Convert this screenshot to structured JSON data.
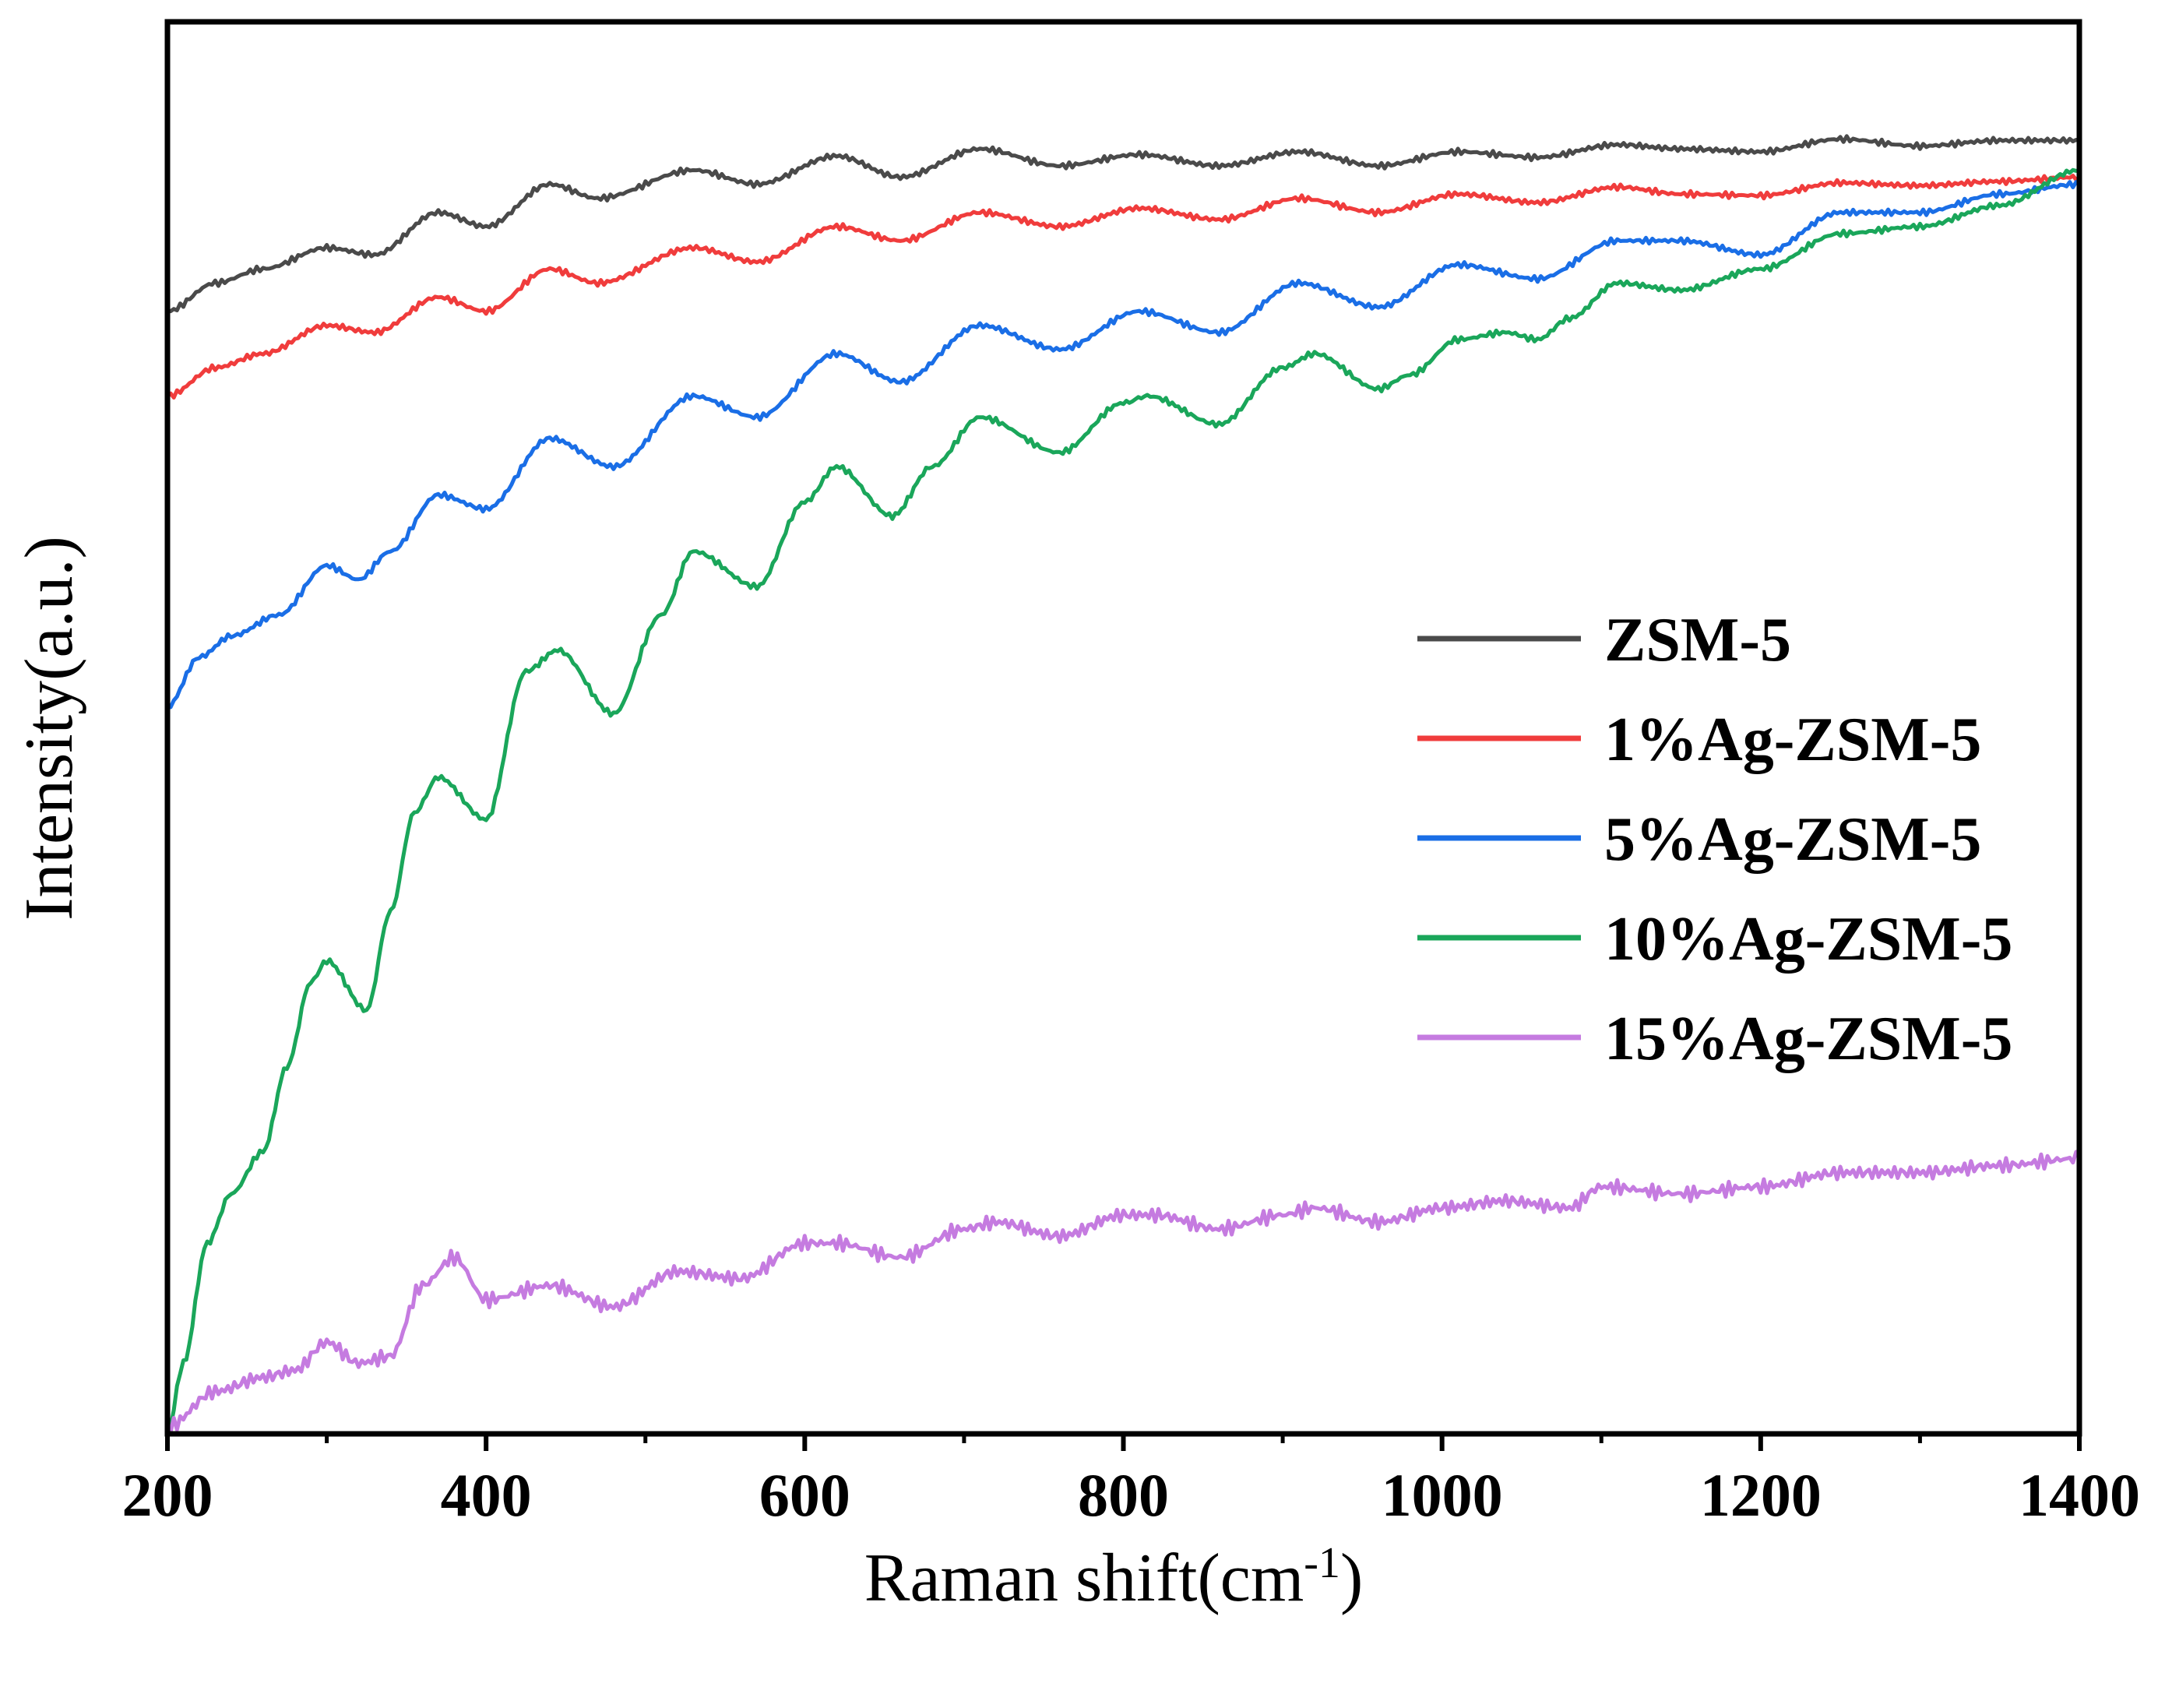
{
  "chart_data": {
    "type": "line",
    "title": "",
    "xlabel_main": "Raman shift(cm",
    "xlabel_sup": "-1",
    "xlabel_close": ")",
    "ylabel": "Intensity(a.u.)",
    "xlim": [
      200,
      1400
    ],
    "ylim": [
      0,
      100
    ],
    "xticks": [
      200,
      400,
      600,
      800,
      1000,
      1200,
      1400
    ],
    "xtick_labels": [
      "200",
      "400",
      "600",
      "800",
      "1000",
      "1200",
      "1400"
    ],
    "yticks_shown": false,
    "legend_position": "right-middle",
    "series": [
      {
        "name": "ZSM-5",
        "color": "#4a4a4a",
        "x": [
          200,
          230,
          260,
          300,
          330,
          370,
          400,
          440,
          470,
          530,
          570,
          620,
          660,
          710,
          760,
          810,
          860,
          910,
          960,
          1010,
          1060,
          1110,
          1150,
          1200,
          1250,
          1300,
          1350,
          1400
        ],
        "values": [
          79.5,
          81.5,
          82.5,
          84.0,
          83.5,
          86.5,
          85.5,
          88.5,
          87.5,
          89.5,
          88.5,
          90.5,
          89.0,
          91.0,
          89.8,
          90.6,
          89.8,
          90.8,
          89.8,
          90.8,
          90.4,
          91.3,
          91.0,
          90.8,
          91.7,
          91.2,
          91.6,
          91.6
        ]
      },
      {
        "name": "1%Ag-ZSM-5",
        "color": "#f03c3c",
        "x": [
          200,
          230,
          260,
          300,
          330,
          370,
          400,
          440,
          470,
          530,
          570,
          620,
          660,
          710,
          760,
          810,
          860,
          910,
          960,
          1010,
          1060,
          1110,
          1150,
          1200,
          1250,
          1300,
          1350,
          1400
        ],
        "values": [
          73.5,
          75.5,
          76.5,
          78.5,
          78.0,
          80.5,
          79.5,
          82.5,
          81.5,
          84.0,
          83.0,
          85.5,
          84.5,
          86.5,
          85.5,
          86.8,
          86.0,
          87.5,
          86.5,
          87.8,
          87.2,
          88.3,
          87.8,
          87.7,
          88.6,
          88.4,
          88.7,
          89.0
        ]
      },
      {
        "name": "5%Ag-ZSM-5",
        "color": "#1a6ee6",
        "x": [
          200,
          220,
          240,
          270,
          300,
          320,
          340,
          370,
          400,
          440,
          480,
          530,
          570,
          620,
          660,
          710,
          760,
          810,
          860,
          910,
          960,
          1010,
          1060,
          1110,
          1150,
          1200,
          1250,
          1300,
          1350,
          1400
        ],
        "values": [
          51.5,
          55.0,
          56.5,
          58.0,
          61.5,
          60.5,
          62.5,
          66.5,
          65.5,
          70.5,
          68.5,
          73.5,
          72.0,
          76.5,
          74.5,
          78.5,
          76.8,
          79.5,
          78.0,
          81.5,
          79.8,
          82.8,
          81.8,
          84.5,
          84.5,
          83.5,
          86.5,
          86.5,
          87.8,
          88.5
        ]
      },
      {
        "name": "10%Ag-ZSM-5",
        "color": "#1aa65a",
        "x": [
          200,
          210,
          225,
          240,
          260,
          275,
          290,
          300,
          325,
          340,
          355,
          370,
          400,
          425,
          445,
          480,
          510,
          530,
          570,
          600,
          620,
          655,
          680,
          710,
          760,
          800,
          815,
          860,
          900,
          920,
          960,
          980,
          1010,
          1040,
          1060,
          1080,
          1110,
          1150,
          1200,
          1250,
          1300,
          1350,
          1400
        ],
        "values": [
          0.0,
          5.0,
          13.5,
          17.0,
          20.0,
          26.0,
          32.0,
          33.5,
          30.0,
          37.0,
          44.0,
          46.5,
          43.5,
          54.0,
          55.5,
          51.0,
          58.0,
          62.5,
          60.0,
          66.0,
          68.5,
          65.0,
          68.5,
          72.0,
          69.5,
          73.0,
          73.5,
          71.5,
          75.5,
          76.5,
          74.0,
          75.0,
          77.5,
          78.0,
          77.5,
          79.0,
          81.5,
          81.0,
          82.5,
          85.0,
          85.5,
          87.0,
          89.5
        ]
      },
      {
        "name": "15%Ag-ZSM-5",
        "color": "#c57be0",
        "x": [
          200,
          230,
          260,
          280,
          300,
          320,
          340,
          360,
          380,
          400,
          440,
          480,
          520,
          560,
          600,
          620,
          660,
          700,
          720,
          760,
          800,
          820,
          860,
          900,
          920,
          960,
          1000,
          1040,
          1080,
          1100,
          1150,
          1200,
          1250,
          1300,
          1350,
          1400
        ],
        "values": [
          0.5,
          3.0,
          4.0,
          4.5,
          6.5,
          5.0,
          5.5,
          10.5,
          12.5,
          9.5,
          10.5,
          9.0,
          11.5,
          11.0,
          13.5,
          13.5,
          12.5,
          14.5,
          15.0,
          14.0,
          15.5,
          15.5,
          14.5,
          15.5,
          16.0,
          15.0,
          16.0,
          16.5,
          16.0,
          17.5,
          17.0,
          17.5,
          18.5,
          18.5,
          19.0,
          19.5
        ]
      }
    ]
  }
}
